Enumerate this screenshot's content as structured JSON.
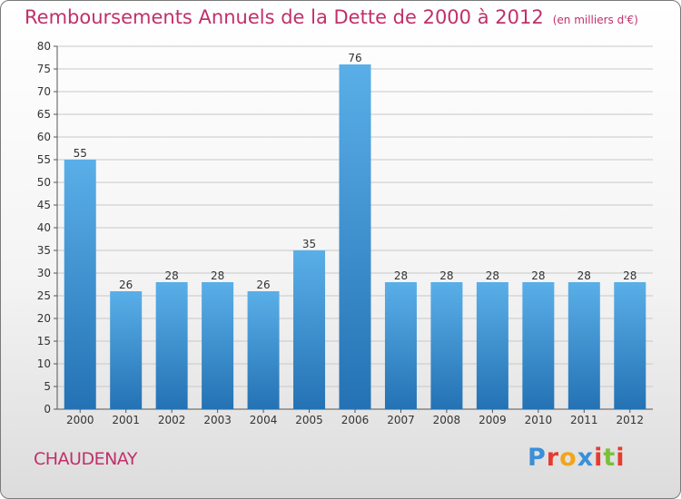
{
  "header": {
    "title": "Remboursements Annuels de la Dette de 2000 à 2012",
    "unit": "(en milliers d'€)"
  },
  "footer": {
    "place": "CHAUDENAY",
    "logo": {
      "text": "Proxiti",
      "letter_colors": [
        "#3a8fd8",
        "#e63b2e",
        "#f2a51a",
        "#3a8fd8",
        "#e63b2e",
        "#7bbf3a",
        "#e63b2e"
      ]
    }
  },
  "chart_data": {
    "type": "bar",
    "title": "Remboursements Annuels de la Dette de 2000 à 2012",
    "subtitle": "(en milliers d'€)",
    "categories": [
      "2000",
      "2001",
      "2002",
      "2003",
      "2004",
      "2005",
      "2006",
      "2007",
      "2008",
      "2009",
      "2010",
      "2011",
      "2012"
    ],
    "values": [
      55,
      26,
      28,
      28,
      26,
      35,
      76,
      28,
      28,
      28,
      28,
      28,
      28
    ],
    "data_labels": [
      "55",
      "26",
      "28",
      "28",
      "26",
      "35",
      "76",
      "28",
      "28",
      "28",
      "28",
      "28",
      "28"
    ],
    "ylim": [
      0,
      80
    ],
    "yticks": [
      0,
      5,
      10,
      15,
      20,
      25,
      30,
      35,
      40,
      45,
      50,
      55,
      60,
      65,
      70,
      75,
      80
    ],
    "grid": true,
    "colors": {
      "bar_top": "#5aafe8",
      "bar_bottom": "#2472b4",
      "grid": "#c8c8c8",
      "axis": "#555555"
    }
  }
}
